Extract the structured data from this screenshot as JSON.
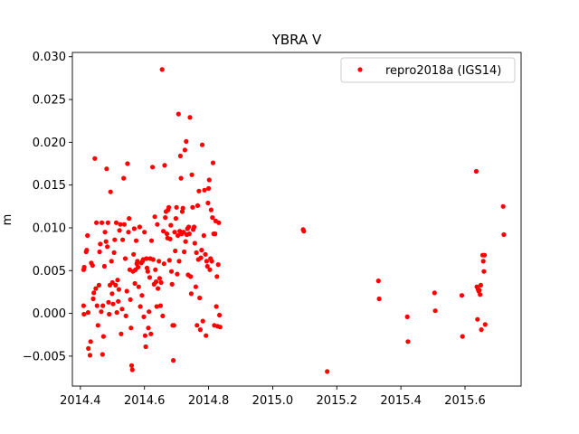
{
  "chart_data": {
    "type": "scatter",
    "title": "YBRA V",
    "xlabel": "",
    "ylabel": "m",
    "xlim": [
      2014.375,
      2015.775
    ],
    "ylim": [
      -0.0085,
      0.0305
    ],
    "xticks": [
      2014.4,
      2014.6,
      2014.8,
      2015.0,
      2015.2,
      2015.4,
      2015.6
    ],
    "xtick_labels": [
      "2014.4",
      "2014.6",
      "2014.8",
      "2015.0",
      "2015.2",
      "2015.4",
      "2015.6"
    ],
    "yticks": [
      -0.005,
      0.0,
      0.005,
      0.01,
      0.015,
      0.02,
      0.025,
      0.03
    ],
    "ytick_labels": [
      "−0.005",
      "0.000",
      "0.005",
      "0.010",
      "0.015",
      "0.020",
      "0.025",
      "0.030"
    ],
    "grid": false,
    "legend_position": "top-right",
    "color": "#ff0000",
    "series": [
      {
        "name": "repro2018a (IGS14)",
        "points": [
          [
            2014.41,
            0.0051
          ],
          [
            2014.412,
            0.0054
          ],
          [
            2014.41,
            0.0009
          ],
          [
            2014.411,
            -0.0001
          ],
          [
            2014.418,
            0.0072
          ],
          [
            2014.42,
            0.0074
          ],
          [
            2014.422,
            0.0091
          ],
          [
            2014.424,
            0.0001
          ],
          [
            2014.425,
            -0.0041
          ],
          [
            2014.43,
            -0.0049
          ],
          [
            2014.432,
            -0.0033
          ],
          [
            2014.434,
            0.0059
          ],
          [
            2014.438,
            0.0056
          ],
          [
            2014.44,
            0.0017
          ],
          [
            2014.442,
            0.0024
          ],
          [
            2014.445,
            0.0181
          ],
          [
            2014.448,
            0.0029
          ],
          [
            2014.45,
            0.0106
          ],
          [
            2014.452,
            0.0009
          ],
          [
            2014.455,
            -0.0014
          ],
          [
            2014.458,
            0.0033
          ],
          [
            2014.46,
            0.0072
          ],
          [
            2014.462,
            0.0081
          ],
          [
            2014.465,
            0.0002
          ],
          [
            2014.467,
            0.0106
          ],
          [
            2014.469,
            -0.0048
          ],
          [
            2014.47,
            0.0009
          ],
          [
            2014.472,
            -0.0027
          ],
          [
            2014.475,
            0.0055
          ],
          [
            2014.477,
            0.0095
          ],
          [
            2014.48,
            0.0084
          ],
          [
            2014.482,
            0.0169
          ],
          [
            2014.484,
            0.0078
          ],
          [
            2014.486,
            0.0106
          ],
          [
            2014.488,
            0.0013
          ],
          [
            2014.49,
            -0.0001
          ],
          [
            2014.492,
            0.0033
          ],
          [
            2014.494,
            0.0142
          ],
          [
            2014.497,
            0.0061
          ],
          [
            2014.499,
            0.0023
          ],
          [
            2014.5,
            0.0036
          ],
          [
            2014.502,
            0.0011
          ],
          [
            2014.505,
            0.0071
          ],
          [
            2014.507,
            0.0086
          ],
          [
            2014.51,
            0.0033
          ],
          [
            2014.512,
            0.0106
          ],
          [
            2014.514,
            0.0001
          ],
          [
            2014.516,
            0.0039
          ],
          [
            2014.518,
            0.0014
          ],
          [
            2014.52,
            0.0028
          ],
          [
            2014.522,
            0.0097
          ],
          [
            2014.525,
            0.0104
          ],
          [
            2014.527,
            -0.0024
          ],
          [
            2014.53,
            0.0005
          ],
          [
            2014.532,
            0.0086
          ],
          [
            2014.535,
            0.0158
          ],
          [
            2014.537,
            0.0104
          ],
          [
            2014.54,
            0.0064
          ],
          [
            2014.542,
            -0.0003
          ],
          [
            2014.545,
            0.0026
          ],
          [
            2014.547,
            0.0175
          ],
          [
            2014.55,
            0.0095
          ],
          [
            2014.552,
            0.0111
          ],
          [
            2014.554,
            0.0051
          ],
          [
            2014.556,
            0.0016
          ],
          [
            2014.558,
            -0.0017
          ],
          [
            2014.56,
            -0.0061
          ],
          [
            2014.562,
            -0.0066
          ],
          [
            2014.564,
            0.0049
          ],
          [
            2014.566,
            0.0069
          ],
          [
            2014.568,
            0.0099
          ],
          [
            2014.57,
            0.0035
          ],
          [
            2014.572,
            0.0051
          ],
          [
            2014.574,
            0.0085
          ],
          [
            2014.576,
            0.0058
          ],
          [
            2014.578,
            0.0061
          ],
          [
            2014.58,
            0.0054
          ],
          [
            2014.582,
            0.0031
          ],
          [
            2014.585,
            0.0101
          ],
          [
            2014.587,
            0.0008
          ],
          [
            2014.59,
            0.0059
          ],
          [
            2014.592,
            0.0021
          ],
          [
            2014.594,
            0.0061
          ],
          [
            2014.596,
            0.0063
          ],
          [
            2014.598,
            -0.0004
          ],
          [
            2014.6,
            0.0095
          ],
          [
            2014.602,
            -0.0026
          ],
          [
            2014.604,
            -0.0039
          ],
          [
            2014.606,
            0.0064
          ],
          [
            2014.608,
            0.0053
          ],
          [
            2014.61,
            0.0049
          ],
          [
            2014.612,
            -0.0017
          ],
          [
            2014.614,
            0.0002
          ],
          [
            2014.616,
            0.0042
          ],
          [
            2014.618,
            0.0064
          ],
          [
            2014.62,
            -0.0024
          ],
          [
            2014.622,
            0.0085
          ],
          [
            2014.625,
            0.0171
          ],
          [
            2014.627,
            0.0063
          ],
          [
            2014.63,
            0.0034
          ],
          [
            2014.632,
            0.0113
          ],
          [
            2014.634,
            0.0051
          ],
          [
            2014.636,
            0.0037
          ],
          [
            2014.638,
            0.0008
          ],
          [
            2014.64,
            0.0104
          ],
          [
            2014.642,
            0.0029
          ],
          [
            2014.645,
            0.0061
          ],
          [
            2014.647,
            0.0041
          ],
          [
            2014.65,
            0.0009
          ],
          [
            2014.652,
            0.0036
          ],
          [
            2014.655,
            0.0285
          ],
          [
            2014.657,
            -0.0003
          ],
          [
            2014.659,
            0.0096
          ],
          [
            2014.661,
            0.0058
          ],
          [
            2014.663,
            0.0173
          ],
          [
            2014.665,
            0.0112
          ],
          [
            2014.667,
            0.0119
          ],
          [
            2014.67,
            0.0093
          ],
          [
            2014.672,
            0.0088
          ],
          [
            2014.674,
            0.0121
          ],
          [
            2014.676,
            0.0124
          ],
          [
            2014.678,
            0.0062
          ],
          [
            2014.68,
            0.0087
          ],
          [
            2014.682,
            0.0103
          ],
          [
            2014.684,
            0.0049
          ],
          [
            2014.686,
            0.0034
          ],
          [
            2014.688,
            -0.0014
          ],
          [
            2014.69,
            -0.0055
          ],
          [
            2014.692,
            -0.0014
          ],
          [
            2014.694,
            0.0095
          ],
          [
            2014.696,
            0.0073
          ],
          [
            2014.698,
            0.0111
          ],
          [
            2014.7,
            0.0124
          ],
          [
            2014.702,
            0.0046
          ],
          [
            2014.704,
            0.0091
          ],
          [
            2014.706,
            0.0233
          ],
          [
            2014.708,
            0.0061
          ],
          [
            2014.71,
            0.0096
          ],
          [
            2014.712,
            0.0184
          ],
          [
            2014.714,
            0.0158
          ],
          [
            2014.716,
            0.0093
          ],
          [
            2014.718,
            0.0119
          ],
          [
            2014.72,
            0.0123
          ],
          [
            2014.722,
            0.0095
          ],
          [
            2014.724,
            0.0072
          ],
          [
            2014.726,
            0.0191
          ],
          [
            2014.728,
            0.0084
          ],
          [
            2014.73,
            0.0201
          ],
          [
            2014.732,
            0.0092
          ],
          [
            2014.734,
            0.0099
          ],
          [
            2014.736,
            0.0045
          ],
          [
            2014.738,
            0.0101
          ],
          [
            2014.74,
            0.0093
          ],
          [
            2014.742,
            0.0229
          ],
          [
            2014.744,
            0.0043
          ],
          [
            2014.746,
            0.0023
          ],
          [
            2014.748,
            0.0162
          ],
          [
            2014.75,
            0.0124
          ],
          [
            2014.752,
            0.0098
          ],
          [
            2014.755,
            0.0101
          ],
          [
            2014.757,
            0.0082
          ],
          [
            2014.76,
            0.0031
          ],
          [
            2014.762,
            0.0071
          ],
          [
            2014.764,
            -0.0014
          ],
          [
            2014.766,
            0.0126
          ],
          [
            2014.768,
            0.0063
          ],
          [
            2014.77,
            0.0143
          ],
          [
            2014.772,
            0.0018
          ],
          [
            2014.774,
            -0.0019
          ],
          [
            2014.776,
            0.0065
          ],
          [
            2014.778,
            0.0074
          ],
          [
            2014.78,
            0.0197
          ],
          [
            2014.782,
            -0.0009
          ],
          [
            2014.785,
            0.0091
          ],
          [
            2014.787,
            0.0144
          ],
          [
            2014.79,
            0.0069
          ],
          [
            2014.792,
            -0.0026
          ],
          [
            2014.794,
            0.0061
          ],
          [
            2014.796,
            0.0055
          ],
          [
            2014.798,
            0.0129
          ],
          [
            2014.8,
            0.0146
          ],
          [
            2014.802,
            0.0156
          ],
          [
            2014.804,
            0.0051
          ],
          [
            2014.806,
            0.0064
          ],
          [
            2014.808,
            0.0121
          ],
          [
            2014.81,
            0.0061
          ],
          [
            2014.812,
            0.0112
          ],
          [
            2014.814,
            0.0176
          ],
          [
            2014.816,
            0.0093
          ],
          [
            2014.818,
            -0.0014
          ],
          [
            2014.82,
            0.0093
          ],
          [
            2014.822,
            0.0108
          ],
          [
            2014.824,
            0.0008
          ],
          [
            2014.826,
            0.0043
          ],
          [
            2014.828,
            -0.0015
          ],
          [
            2014.83,
            0.0057
          ],
          [
            2014.832,
            0.0106
          ],
          [
            2014.834,
            -0.0002
          ],
          [
            2014.836,
            -0.0016
          ],
          [
            2015.095,
            0.0098
          ],
          [
            2015.097,
            0.0096
          ],
          [
            2015.17,
            -0.0068
          ],
          [
            2015.33,
            0.0038
          ],
          [
            2015.332,
            0.0017
          ],
          [
            2015.42,
            -0.0004
          ],
          [
            2015.422,
            -0.0033
          ],
          [
            2015.505,
            0.0024
          ],
          [
            2015.507,
            0.0003
          ],
          [
            2015.59,
            0.0021
          ],
          [
            2015.592,
            -0.0027
          ],
          [
            2015.635,
            0.0166
          ],
          [
            2015.637,
            0.0031
          ],
          [
            2015.639,
            -0.0007
          ],
          [
            2015.641,
            0.0028
          ],
          [
            2015.643,
            0.0026
          ],
          [
            2015.645,
            0.0027
          ],
          [
            2015.647,
            0.0022
          ],
          [
            2015.649,
            0.0033
          ],
          [
            2015.651,
            -0.0019
          ],
          [
            2015.655,
            0.0068
          ],
          [
            2015.657,
            0.0061
          ],
          [
            2015.659,
            0.0049
          ],
          [
            2015.661,
            0.0068
          ],
          [
            2015.663,
            -0.0013
          ],
          [
            2015.719,
            0.0125
          ],
          [
            2015.721,
            0.0092
          ]
        ]
      }
    ]
  }
}
